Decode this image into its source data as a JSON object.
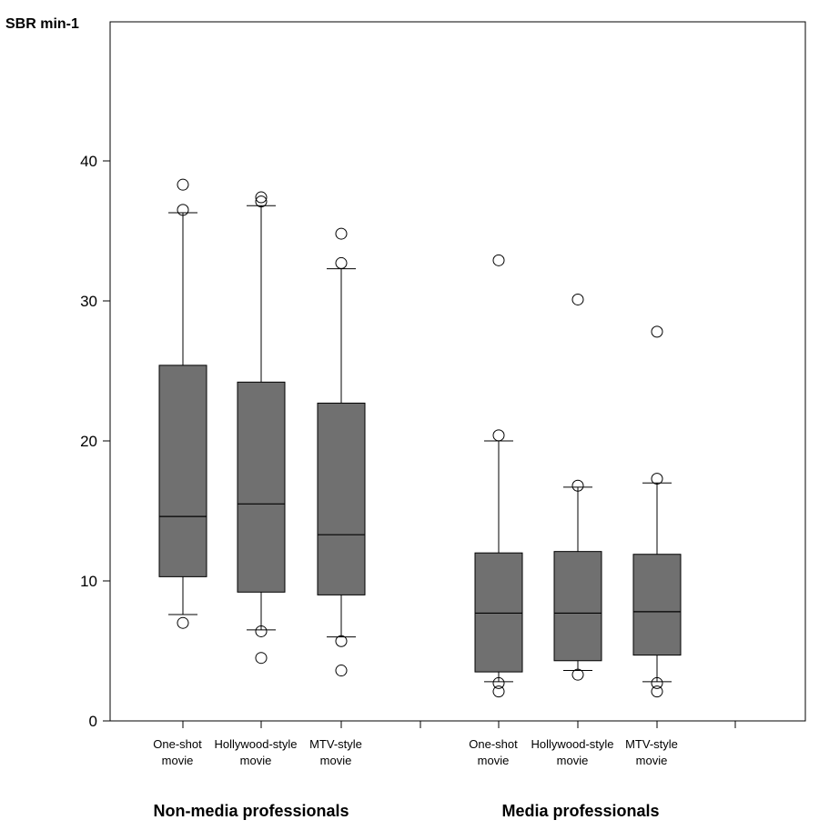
{
  "chart_data": {
    "type": "box",
    "ylabel": "SBR min-1",
    "xlabel": "",
    "ylim": [
      0,
      40
    ],
    "yticks": [
      0,
      10,
      20,
      30,
      40
    ],
    "grid": false,
    "box_color": "#707070",
    "groups": [
      {
        "name": "Non-media professionals",
        "boxes": [
          {
            "label_line1": "One-shot",
            "label_line2": "movie",
            "q1": 10.3,
            "median": 14.6,
            "q3": 25.4,
            "whisker_low": 7.6,
            "whisker_high": 36.3,
            "outliers": [
              7.0,
              36.5,
              38.3
            ]
          },
          {
            "label_line1": "Hollywood-style",
            "label_line2": "movie",
            "q1": 9.2,
            "median": 15.5,
            "q3": 24.2,
            "whisker_low": 6.5,
            "whisker_high": 36.8,
            "outliers": [
              4.5,
              6.4,
              37.1,
              37.4
            ]
          },
          {
            "label_line1": "MTV-style",
            "label_line2": "movie",
            "q1": 9.0,
            "median": 13.3,
            "q3": 22.7,
            "whisker_low": 6.0,
            "whisker_high": 32.3,
            "outliers": [
              3.6,
              5.7,
              32.7,
              34.8
            ]
          }
        ]
      },
      {
        "name": "Media professionals",
        "boxes": [
          {
            "label_line1": "One-shot",
            "label_line2": "movie",
            "q1": 3.5,
            "median": 7.7,
            "q3": 12.0,
            "whisker_low": 2.8,
            "whisker_high": 20.0,
            "outliers": [
              2.1,
              2.7,
              20.4,
              32.9
            ]
          },
          {
            "label_line1": "Hollywood-style",
            "label_line2": "movie",
            "q1": 4.3,
            "median": 7.7,
            "q3": 12.1,
            "whisker_low": 3.6,
            "whisker_high": 16.7,
            "outliers": [
              3.3,
              16.8,
              30.1
            ]
          },
          {
            "label_line1": "MTV-style",
            "label_line2": "movie",
            "q1": 4.7,
            "median": 7.8,
            "q3": 11.9,
            "whisker_low": 2.8,
            "whisker_high": 17.0,
            "outliers": [
              2.1,
              2.7,
              17.3,
              27.8
            ]
          }
        ]
      }
    ]
  }
}
